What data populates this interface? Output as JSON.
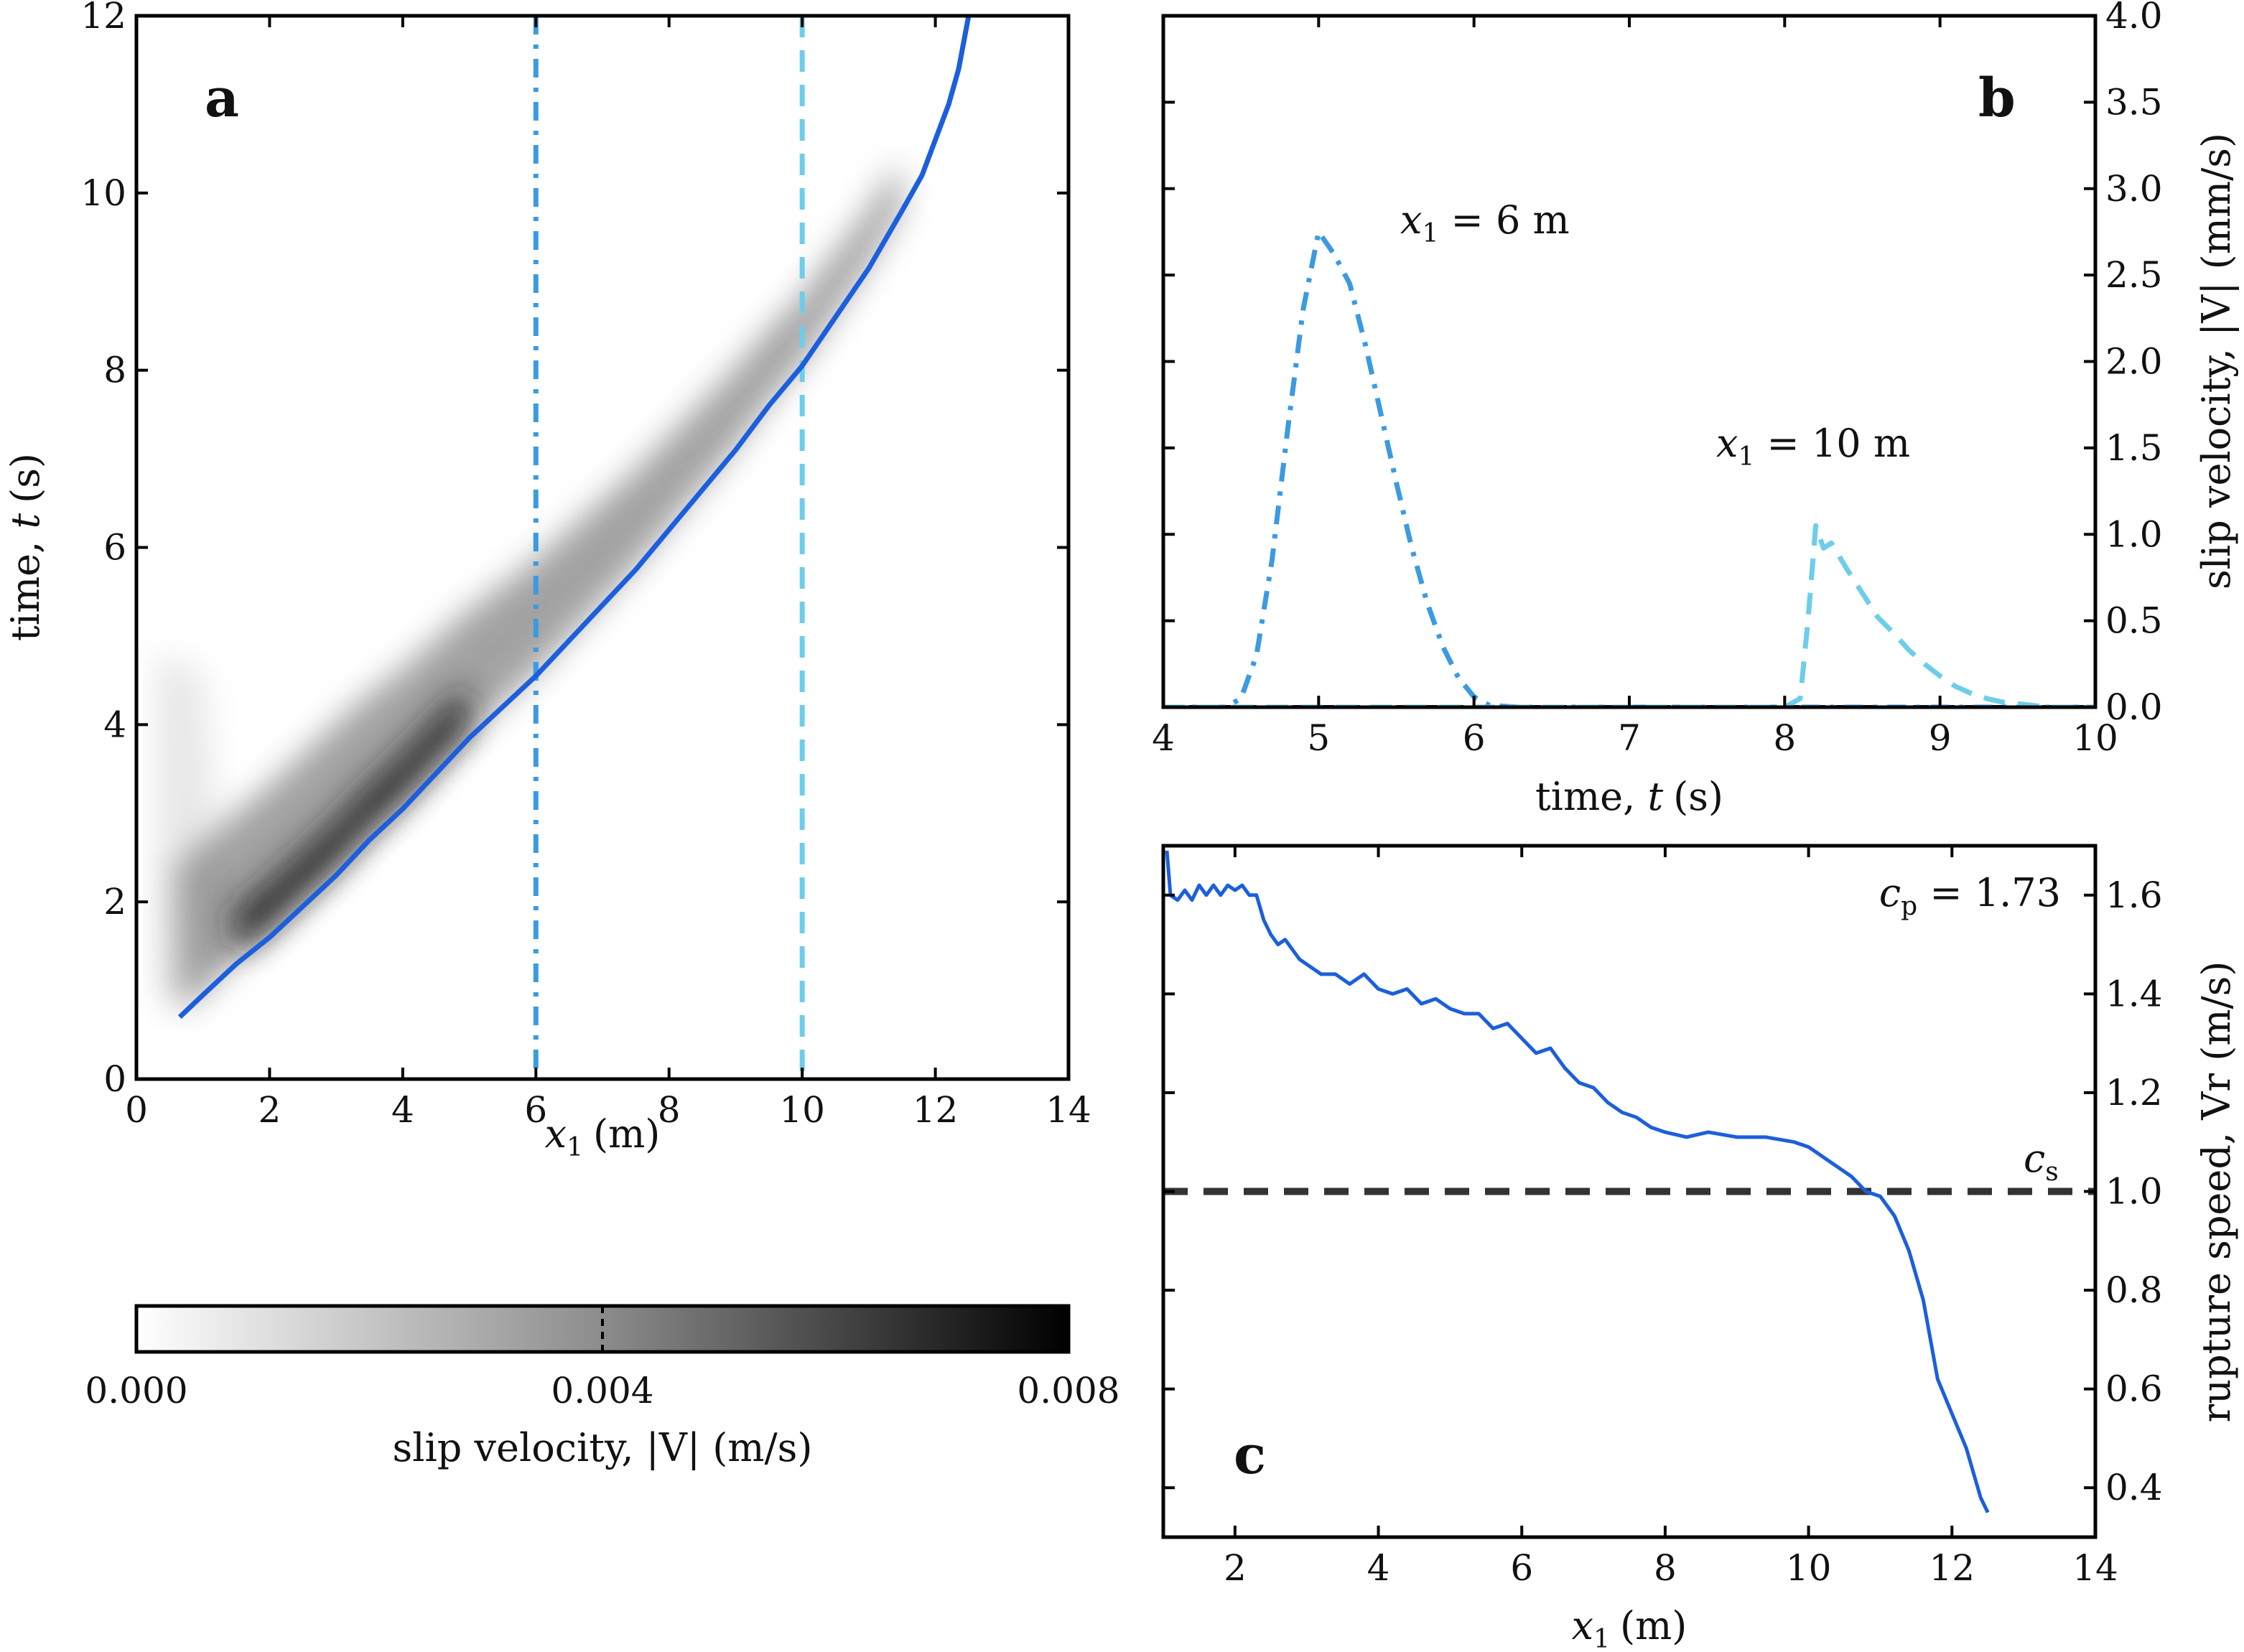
{
  "chart_data": [
    {
      "id": "a",
      "type": "heatmap",
      "panel_letter": "a",
      "xlabel_main": "x",
      "xlabel_sub": "1",
      "xlabel_unit": "(m)",
      "ylabel_main": "time, ",
      "ylabel_var": "t",
      "ylabel_unit": "(s)",
      "xlim": [
        0,
        14
      ],
      "ylim": [
        0,
        12
      ],
      "xticks": [
        "0",
        "2",
        "4",
        "6",
        "8",
        "10",
        "12",
        "14"
      ],
      "yticks": [
        "0",
        "2",
        "4",
        "6",
        "8",
        "10",
        "12"
      ],
      "rupture_front": {
        "x": [
          0.65,
          1.0,
          1.5,
          2.0,
          2.5,
          3.0,
          3.5,
          4.0,
          4.5,
          5.0,
          5.5,
          6.0,
          6.5,
          7.0,
          7.5,
          8.0,
          8.5,
          9.0,
          9.5,
          10.0,
          10.5,
          11.0,
          11.5,
          11.8,
          12.0,
          12.2,
          12.35,
          12.45,
          12.5
        ],
        "t": [
          0.7,
          0.95,
          1.3,
          1.6,
          1.95,
          2.3,
          2.7,
          3.05,
          3.45,
          3.85,
          4.2,
          4.55,
          4.95,
          5.35,
          5.75,
          6.2,
          6.65,
          7.1,
          7.6,
          8.05,
          8.6,
          9.15,
          9.8,
          10.2,
          10.6,
          11.0,
          11.4,
          11.8,
          12.0
        ]
      },
      "vertical_markers": [
        {
          "x": 6,
          "style": "dash-dot",
          "color": "#3b9ae1"
        },
        {
          "x": 10,
          "style": "dashed",
          "color": "#6dcdea"
        }
      ],
      "colorbar": {
        "label": "slip velocity, |V| (m/s)",
        "range": [
          0.0,
          0.008
        ],
        "ticks": [
          "0.000",
          "0.004",
          "0.008"
        ]
      },
      "line_color": "#1c5fdc"
    },
    {
      "id": "b",
      "type": "line",
      "panel_letter": "b",
      "xlabel_main": "time, ",
      "xlabel_var": "t",
      "xlabel_unit": "(s)",
      "ylabel": "slip velocity, |V| (mm/s)",
      "xlim": [
        4,
        10
      ],
      "ylim": [
        0,
        4
      ],
      "xticks": [
        "4",
        "5",
        "6",
        "7",
        "8",
        "9",
        "10"
      ],
      "yticks": [
        "0.0",
        "0.5",
        "1.0",
        "1.5",
        "2.0",
        "2.5",
        "3.0",
        "3.5",
        "4.0"
      ],
      "series": [
        {
          "name": "x1 = 6 m",
          "label_var": "x",
          "label_sub": "1",
          "label_rest": " = 6 m",
          "style": "dash-dot",
          "color": "#3b9ae1",
          "t": [
            4.0,
            4.4,
            4.5,
            4.6,
            4.7,
            4.8,
            4.9,
            5.0,
            5.1,
            5.2,
            5.3,
            5.4,
            5.5,
            5.6,
            5.7,
            5.8,
            5.9,
            6.0,
            6.1,
            6.3,
            10.0
          ],
          "v": [
            0.0,
            0.0,
            0.05,
            0.3,
            0.85,
            1.6,
            2.3,
            2.75,
            2.62,
            2.45,
            2.1,
            1.7,
            1.3,
            0.92,
            0.6,
            0.35,
            0.17,
            0.06,
            0.01,
            0.0,
            0.0
          ]
        },
        {
          "name": "x1 = 10 m",
          "label_var": "x",
          "label_sub": "1",
          "label_rest": " = 10 m",
          "style": "dashed",
          "color": "#6dcdea",
          "t": [
            4.0,
            8.0,
            8.1,
            8.15,
            8.2,
            8.25,
            8.3,
            8.4,
            8.5,
            8.6,
            8.7,
            8.8,
            8.9,
            9.0,
            9.1,
            9.2,
            9.3,
            9.4,
            9.5,
            9.7,
            10.0
          ],
          "v": [
            0.0,
            0.0,
            0.05,
            0.5,
            1.05,
            0.92,
            0.95,
            0.8,
            0.66,
            0.52,
            0.43,
            0.33,
            0.25,
            0.18,
            0.12,
            0.08,
            0.05,
            0.03,
            0.02,
            0.0,
            0.0
          ]
        }
      ],
      "baseline": {
        "v": 0,
        "style": "dashed",
        "color": "#222222"
      }
    },
    {
      "id": "c",
      "type": "line",
      "panel_letter": "c",
      "xlabel_main": "x",
      "xlabel_sub": "1",
      "xlabel_unit": "(m)",
      "ylabel": "rupture speed, Vr (m/s)",
      "xlim": [
        1,
        14
      ],
      "ylim": [
        0.3,
        1.7
      ],
      "xticks": [
        "2",
        "4",
        "6",
        "8",
        "10",
        "12",
        "14"
      ],
      "yticks": [
        "0.4",
        "0.6",
        "0.8",
        "1.0",
        "1.2",
        "1.4",
        "1.6"
      ],
      "series": [
        {
          "name": "rupture speed",
          "color": "#1c5fdc",
          "x": [
            1.05,
            1.1,
            1.2,
            1.3,
            1.4,
            1.5,
            1.6,
            1.7,
            1.8,
            1.9,
            2.0,
            2.1,
            2.2,
            2.3,
            2.4,
            2.5,
            2.6,
            2.7,
            2.8,
            2.9,
            3.0,
            3.2,
            3.4,
            3.6,
            3.8,
            4.0,
            4.2,
            4.4,
            4.6,
            4.8,
            5.0,
            5.2,
            5.4,
            5.6,
            5.8,
            6.0,
            6.2,
            6.4,
            6.6,
            6.8,
            7.0,
            7.2,
            7.4,
            7.6,
            7.8,
            8.0,
            8.3,
            8.6,
            9.0,
            9.4,
            9.8,
            10.0,
            10.2,
            10.4,
            10.6,
            10.8,
            11.0,
            11.2,
            11.4,
            11.6,
            11.8,
            12.0,
            12.2,
            12.4,
            12.5
          ],
          "v": [
            1.69,
            1.6,
            1.59,
            1.61,
            1.59,
            1.62,
            1.6,
            1.62,
            1.6,
            1.62,
            1.61,
            1.62,
            1.6,
            1.6,
            1.55,
            1.52,
            1.5,
            1.51,
            1.49,
            1.47,
            1.46,
            1.44,
            1.44,
            1.42,
            1.44,
            1.41,
            1.4,
            1.41,
            1.38,
            1.39,
            1.37,
            1.36,
            1.36,
            1.33,
            1.34,
            1.31,
            1.28,
            1.29,
            1.25,
            1.22,
            1.21,
            1.18,
            1.16,
            1.15,
            1.13,
            1.12,
            1.11,
            1.12,
            1.11,
            1.11,
            1.1,
            1.09,
            1.07,
            1.05,
            1.03,
            1.0,
            0.99,
            0.95,
            0.88,
            0.78,
            0.62,
            0.55,
            0.48,
            0.38,
            0.35
          ]
        }
      ],
      "reference_line": {
        "v": 1.0,
        "label_var": "c",
        "label_sub": "s",
        "style": "dashed",
        "color": "#333333"
      },
      "annotation": {
        "var": "c",
        "sub": "p",
        "rest": " = 1.73"
      }
    }
  ]
}
